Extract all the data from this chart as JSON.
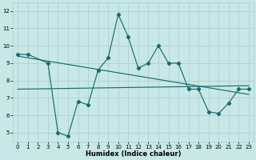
{
  "xlabel": "Humidex (Indice chaleur)",
  "xlim": [
    -0.5,
    23.5
  ],
  "ylim": [
    4.5,
    12.5
  ],
  "yticks": [
    5,
    6,
    7,
    8,
    9,
    10,
    11,
    12
  ],
  "xticks": [
    0,
    1,
    2,
    3,
    4,
    5,
    6,
    7,
    8,
    9,
    10,
    11,
    12,
    13,
    14,
    15,
    16,
    17,
    18,
    19,
    20,
    21,
    22,
    23
  ],
  "bg_color": "#c8e8e8",
  "grid_color": "#a8cccc",
  "line_color": "#1a6b6b",
  "series1_x": [
    0,
    1,
    3,
    4,
    5,
    6,
    7,
    8,
    9,
    10,
    11,
    12,
    13,
    14,
    15,
    16,
    17,
    18,
    19,
    20,
    21,
    22,
    23
  ],
  "series1_y": [
    9.5,
    9.5,
    9.0,
    5.0,
    4.8,
    6.8,
    6.6,
    8.6,
    9.3,
    11.8,
    10.5,
    8.7,
    9.0,
    10.0,
    9.0,
    9.0,
    7.5,
    7.5,
    6.2,
    6.1,
    6.7,
    7.5,
    7.5
  ],
  "trend1_x": [
    0,
    23
  ],
  "trend1_y": [
    9.4,
    7.2
  ],
  "trend2_x": [
    0,
    23
  ],
  "trend2_y": [
    7.5,
    7.7
  ]
}
